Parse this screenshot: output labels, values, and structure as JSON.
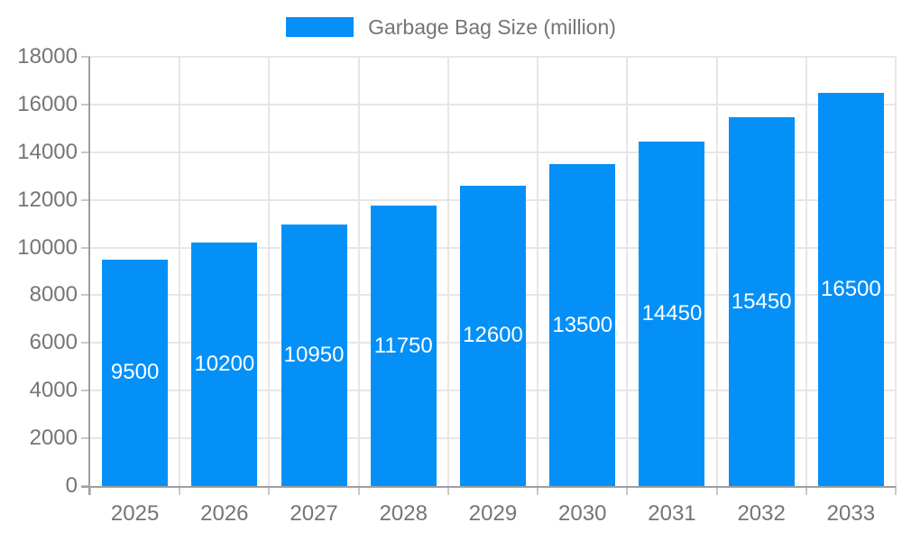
{
  "chart_data": {
    "type": "bar",
    "title": "Garbage Bag Size (million)",
    "legend": {
      "label": "Garbage Bag Size (million)",
      "position": "top"
    },
    "categories": [
      "2025",
      "2026",
      "2027",
      "2028",
      "2029",
      "2030",
      "2031",
      "2032",
      "2033"
    ],
    "series": [
      {
        "name": "Garbage Bag Size (million)",
        "values": [
          9500,
          10200,
          10950,
          11750,
          12600,
          13500,
          14450,
          15450,
          16500
        ]
      }
    ],
    "xlabel": "",
    "ylabel": "",
    "ylim": [
      0,
      18000
    ],
    "ytick_step": 2000,
    "yticks": [
      0,
      2000,
      4000,
      6000,
      8000,
      10000,
      12000,
      14000,
      16000,
      18000
    ],
    "grid": true,
    "data_labels_inside_bars": true,
    "colors": {
      "bar": "#0590f8",
      "grid": "#e6e6e6",
      "axis": "#9e9e9e",
      "tick_mark": "#c9c9c9",
      "tick_text": "#757575",
      "legend_text": "#757575",
      "data_label": "#ffffff"
    }
  }
}
